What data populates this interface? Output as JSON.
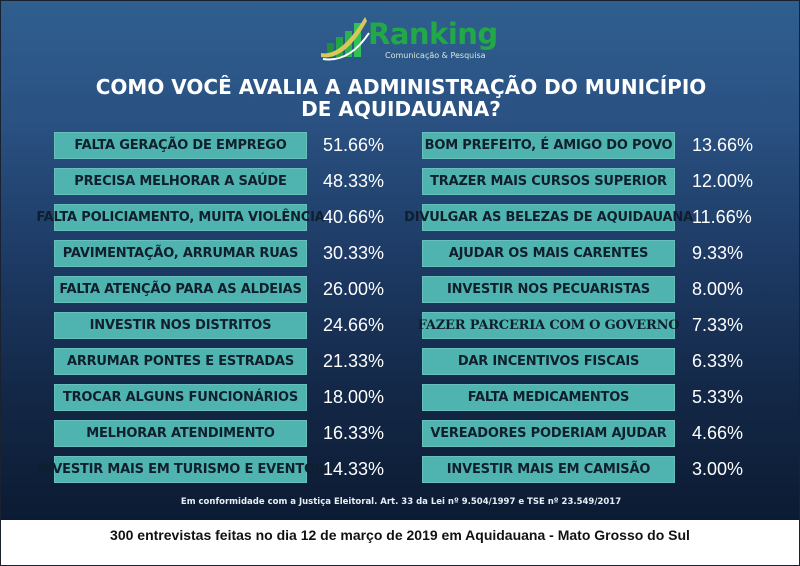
{
  "logo": {
    "name": "Ranking",
    "tagline": "Comunicação & Pesquisa"
  },
  "title_line1": "COMO VOCÊ AVALIA A ADMINISTRAÇÃO DO MUNICÍPIO",
  "title_line2": "DE AQUIDAUANA?",
  "colors": {
    "bar": "#4fb4b0",
    "background_top": "#2f5f8f",
    "background_bottom": "#0c1b33",
    "logo_green": "#22a848"
  },
  "chart_data": {
    "type": "table",
    "title": "COMO VOCÊ AVALIA A ADMINISTRAÇÃO DO MUNICÍPIO DE AQUIDAUANA?",
    "left": [
      {
        "label": "FALTA GERAÇÃO DE EMPREGO",
        "value": "51.66%"
      },
      {
        "label": "PRECISA MELHORAR A SAÚDE",
        "value": "48.33%"
      },
      {
        "label": "FALTA POLICIAMENTO, MUITA VIOLÊNCIA",
        "value": "40.66%"
      },
      {
        "label": "PAVIMENTAÇÃO, ARRUMAR RUAS",
        "value": "30.33%"
      },
      {
        "label": "FALTA ATENÇÃO PARA AS ALDEIAS",
        "value": "26.00%"
      },
      {
        "label": "INVESTIR NOS DISTRITOS",
        "value": "24.66%"
      },
      {
        "label": "ARRUMAR PONTES E ESTRADAS",
        "value": "21.33%"
      },
      {
        "label": "TROCAR ALGUNS FUNCIONÁRIOS",
        "value": "18.00%"
      },
      {
        "label": "MELHORAR ATENDIMENTO",
        "value": "16.33%"
      },
      {
        "label": "INVESTIR MAIS EM TURISMO E EVENTOS",
        "value": "14.33%"
      }
    ],
    "right": [
      {
        "label": "BOM PREFEITO, É AMIGO DO POVO",
        "value": "13.66%"
      },
      {
        "label": "TRAZER MAIS CURSOS SUPERIOR",
        "value": "12.00%"
      },
      {
        "label": "DIVULGAR AS BELEZAS DE AQUIDAUANA",
        "value": "11.66%"
      },
      {
        "label": "AJUDAR OS MAIS CARENTES",
        "value": "9.33%"
      },
      {
        "label": "INVESTIR NOS PECUARISTAS",
        "value": "8.00%"
      },
      {
        "label": "FAZER PARCERIA COM O GOVERNO",
        "value": "7.33%"
      },
      {
        "label": "DAR INCENTIVOS FISCAIS",
        "value": "6.33%"
      },
      {
        "label": "FALTA MEDICAMENTOS",
        "value": "5.33%"
      },
      {
        "label": "VEREADORES PODERIAM AJUDAR",
        "value": "4.66%"
      },
      {
        "label": "INVESTIR MAIS EM CAMISÃO",
        "value": "3.00%"
      }
    ]
  },
  "footnote": "Em conformidade com a Justiça Eleitoral. Art. 33 da Lei nº 9.504/1997 e TSE nº 23.549/2017",
  "bottom_text": "300 entrevistas feitas no dia 12 de março de 2019 em Aquidauana - Mato Grosso do Sul"
}
